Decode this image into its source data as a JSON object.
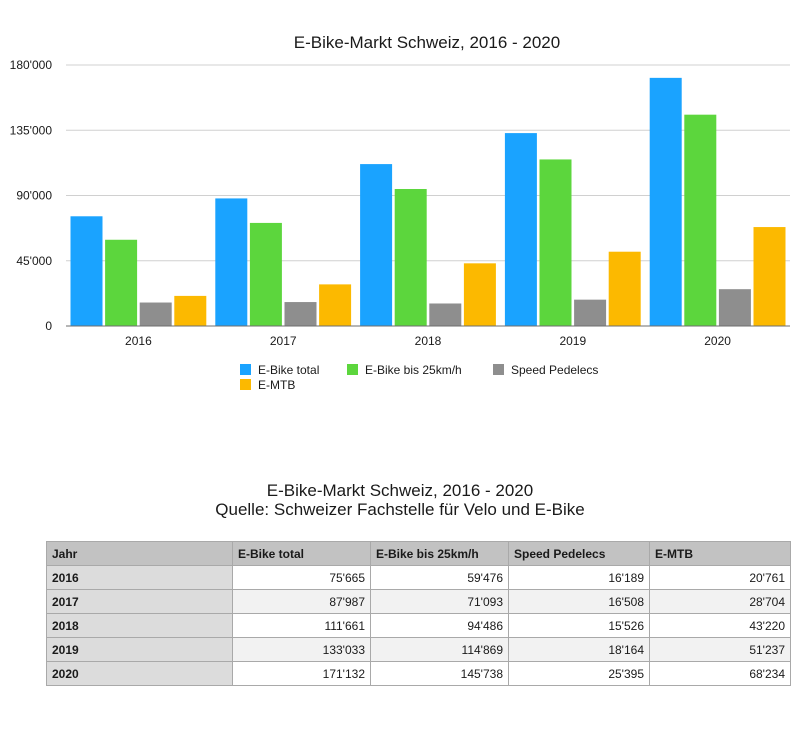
{
  "chart_data": {
    "type": "bar",
    "title": "E-Bike-Markt Schweiz, 2016 - 2020",
    "categories": [
      "2016",
      "2017",
      "2018",
      "2019",
      "2020"
    ],
    "series": [
      {
        "name": "E-Bike total",
        "color": "#1aa3ff",
        "values": [
          75665,
          87987,
          111661,
          133033,
          171132
        ]
      },
      {
        "name": "E-Bike bis 25km/h",
        "color": "#5cd63d",
        "values": [
          59476,
          71093,
          94486,
          114869,
          145738
        ]
      },
      {
        "name": "Speed Pedelecs",
        "color": "#8e8e8e",
        "values": [
          16189,
          16508,
          15526,
          18164,
          25395
        ]
      },
      {
        "name": "E-MTB",
        "color": "#fcb900",
        "values": [
          20761,
          28704,
          43220,
          51237,
          68234
        ]
      }
    ],
    "ylim": [
      0,
      180000
    ],
    "yticks": [
      0,
      45000,
      90000,
      135000,
      180000
    ],
    "ytick_labels": [
      "0",
      "45'000",
      "90'000",
      "135'000",
      "180'000"
    ],
    "grid": true,
    "legend_placement": "bottom"
  },
  "table": {
    "title": "E-Bike-Markt Schweiz, 2016 - 2020",
    "source": "Quelle: Schweizer Fachstelle für Velo und E-Bike",
    "headers": [
      "Jahr",
      "E-Bike total",
      "E-Bike bis 25km/h",
      "Speed Pedelecs",
      "E-MTB"
    ],
    "rows": [
      [
        "2016",
        "75'665",
        "59'476",
        "16'189",
        "20'761"
      ],
      [
        "2017",
        "87'987",
        "71'093",
        "16'508",
        "28'704"
      ],
      [
        "2018",
        "111'661",
        "94'486",
        "15'526",
        "43'220"
      ],
      [
        "2019",
        "133'033",
        "114'869",
        "18'164",
        "51'237"
      ],
      [
        "2020",
        "171'132",
        "145'738",
        "25'395",
        "68'234"
      ]
    ]
  }
}
